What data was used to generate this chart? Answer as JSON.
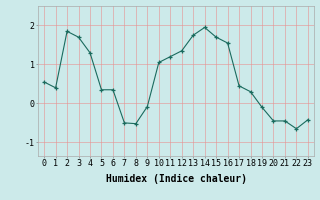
{
  "x": [
    0,
    1,
    2,
    3,
    4,
    5,
    6,
    7,
    8,
    9,
    10,
    11,
    12,
    13,
    14,
    15,
    16,
    17,
    18,
    19,
    20,
    21,
    22,
    23
  ],
  "y": [
    0.55,
    0.4,
    1.85,
    1.7,
    1.3,
    0.35,
    0.35,
    -0.5,
    -0.52,
    -0.08,
    1.05,
    1.2,
    1.35,
    1.75,
    1.95,
    1.7,
    1.55,
    0.45,
    0.3,
    -0.1,
    -0.45,
    -0.45,
    -0.65,
    -0.42
  ],
  "line_color": "#1a6b5e",
  "marker": "+",
  "marker_size": 3,
  "bg_color": "#cceaea",
  "grid_color": "#e89090",
  "xlabel": "Humidex (Indice chaleur)",
  "xlabel_fontsize": 7,
  "yticks": [
    -1,
    0,
    1,
    2
  ],
  "xticks": [
    0,
    1,
    2,
    3,
    4,
    5,
    6,
    7,
    8,
    9,
    10,
    11,
    12,
    13,
    14,
    15,
    16,
    17,
    18,
    19,
    20,
    21,
    22,
    23
  ],
  "ylim": [
    -1.35,
    2.5
  ],
  "xlim": [
    -0.5,
    23.5
  ],
  "tick_fontsize": 6
}
